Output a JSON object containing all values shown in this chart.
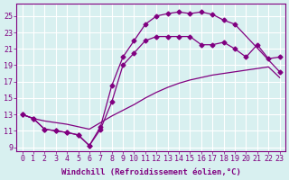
{
  "line_a_x": [
    0,
    1,
    2,
    3,
    4,
    5,
    6,
    7,
    8,
    9,
    10,
    11,
    12,
    13,
    14,
    15,
    16,
    17,
    18,
    19,
    20,
    21,
    22,
    23
  ],
  "line_a_y": [
    13.0,
    12.5,
    12.2,
    12.0,
    11.8,
    11.5,
    11.2,
    12.0,
    12.8,
    13.5,
    14.2,
    15.0,
    15.7,
    16.3,
    16.8,
    17.2,
    17.5,
    17.8,
    18.0,
    18.2,
    18.4,
    18.6,
    18.8,
    17.5
  ],
  "line_b_x": [
    0,
    1,
    2,
    3,
    4,
    5,
    6,
    7,
    8,
    9,
    10,
    11,
    12,
    13,
    14,
    15,
    16,
    17,
    18,
    19,
    20,
    21,
    22,
    23
  ],
  "line_b_y": [
    13.0,
    12.5,
    11.2,
    11.0,
    10.8,
    10.5,
    9.2,
    11.2,
    14.5,
    19.0,
    20.5,
    22.0,
    22.5,
    22.5,
    22.5,
    22.5,
    21.5,
    21.5,
    21.8,
    21.0,
    20.0,
    21.5,
    19.8,
    20.0
  ],
  "line_c_x": [
    0,
    1,
    2,
    3,
    4,
    5,
    6,
    7,
    8,
    9,
    10,
    11,
    12,
    13,
    14,
    15,
    16,
    17,
    18,
    19,
    23
  ],
  "line_c_y": [
    13.0,
    12.5,
    11.2,
    11.0,
    10.8,
    10.5,
    9.2,
    11.5,
    16.5,
    20.0,
    22.0,
    24.0,
    25.0,
    25.3,
    25.5,
    25.3,
    25.5,
    25.2,
    24.5,
    24.0,
    18.2
  ],
  "line_color": "#800080",
  "bg_color": "#d8f0f0",
  "grid_color": "#b8dede",
  "xlabel": "Windchill (Refroidissement éolien,°C)",
  "xlim": [
    -0.5,
    23.5
  ],
  "ylim": [
    8.5,
    26.5
  ],
  "yticks": [
    9,
    11,
    13,
    15,
    17,
    19,
    21,
    23,
    25
  ],
  "xticks": [
    0,
    1,
    2,
    3,
    4,
    5,
    6,
    7,
    8,
    9,
    10,
    11,
    12,
    13,
    14,
    15,
    16,
    17,
    18,
    19,
    20,
    21,
    22,
    23
  ],
  "marker": "D",
  "markersize": 2.5,
  "linewidth": 0.9,
  "xlabel_fontsize": 6.5,
  "tick_fontsize": 6.0
}
